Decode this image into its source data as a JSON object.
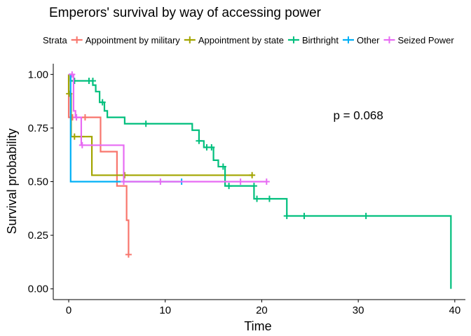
{
  "chart_data": {
    "type": "line",
    "title": "Emperors' survival by way of accessing power",
    "xlabel": "Time",
    "ylabel": "Survival probability",
    "xlim": [
      -1.6,
      41.1
    ],
    "ylim": [
      -0.05,
      1.05
    ],
    "x_ticks": [
      0,
      10,
      20,
      30,
      40
    ],
    "y_ticks": [
      0,
      0.25,
      0.5,
      0.75,
      1.0
    ],
    "x_tick_labels": [
      "0",
      "10",
      "20",
      "30",
      "40"
    ],
    "y_tick_labels": [
      "0.00",
      "0.25",
      "0.50",
      "0.75",
      "1.00"
    ],
    "legend_title": "Strata",
    "legend_position": "top",
    "grid": false,
    "annotation": {
      "text": "p = 0.068",
      "x": 30,
      "y": 0.79
    },
    "series": [
      {
        "name": "Appointment by military",
        "color": "#F8766D",
        "steps": [
          [
            0,
            1.0
          ],
          [
            0,
            0.8
          ],
          [
            3.3,
            0.8
          ],
          [
            3.3,
            0.64
          ],
          [
            5.0,
            0.48
          ],
          [
            6.0,
            0.32
          ],
          [
            6.2,
            0.16
          ]
        ],
        "end_x": 6.2,
        "censored": [
          [
            0.4,
            0.8
          ],
          [
            0.8,
            0.8
          ],
          [
            1.7,
            0.8
          ],
          [
            6.2,
            0.16
          ]
        ]
      },
      {
        "name": "Appointment by state",
        "color": "#A3A500",
        "steps": [
          [
            0,
            1.0
          ],
          [
            0,
            0.91
          ],
          [
            0.25,
            0.91
          ],
          [
            0.25,
            0.71
          ],
          [
            2.4,
            0.71
          ],
          [
            2.4,
            0.53
          ]
        ],
        "end_x": 19.0,
        "censored": [
          [
            0.05,
            0.91
          ],
          [
            0.6,
            0.71
          ],
          [
            1.3,
            0.71
          ],
          [
            5.8,
            0.53
          ],
          [
            19.0,
            0.53
          ]
        ]
      },
      {
        "name": "Birthright",
        "color": "#00BF7D",
        "steps": [
          [
            0,
            1.0
          ],
          [
            0.2,
            0.97
          ],
          [
            2.5,
            0.97
          ],
          [
            2.5,
            0.95
          ],
          [
            2.8,
            0.95
          ],
          [
            2.8,
            0.92
          ],
          [
            3.2,
            0.92
          ],
          [
            3.2,
            0.87
          ],
          [
            3.7,
            0.87
          ],
          [
            3.7,
            0.83
          ],
          [
            4.0,
            0.83
          ],
          [
            4.0,
            0.8
          ],
          [
            5.8,
            0.8
          ],
          [
            5.8,
            0.77
          ],
          [
            12.8,
            0.77
          ],
          [
            12.8,
            0.74
          ],
          [
            13.5,
            0.74
          ],
          [
            13.5,
            0.69
          ],
          [
            14.0,
            0.69
          ],
          [
            14.0,
            0.66
          ],
          [
            15.0,
            0.66
          ],
          [
            15.0,
            0.6
          ],
          [
            15.5,
            0.6
          ],
          [
            15.5,
            0.57
          ],
          [
            16.2,
            0.57
          ],
          [
            16.2,
            0.48
          ],
          [
            19.2,
            0.48
          ],
          [
            19.2,
            0.42
          ],
          [
            22.6,
            0.42
          ],
          [
            22.6,
            0.34
          ],
          [
            39.6,
            0.34
          ],
          [
            39.6,
            0.0
          ]
        ],
        "end_x": 39.6,
        "censored": [
          [
            0.6,
            0.97
          ],
          [
            2.1,
            0.97
          ],
          [
            2.5,
            0.97
          ],
          [
            3.5,
            0.87
          ],
          [
            8.0,
            0.77
          ],
          [
            13.5,
            0.69
          ],
          [
            14.3,
            0.66
          ],
          [
            14.8,
            0.66
          ],
          [
            16.0,
            0.57
          ],
          [
            16.6,
            0.48
          ],
          [
            19.2,
            0.48
          ],
          [
            19.5,
            0.42
          ],
          [
            20.8,
            0.42
          ],
          [
            22.6,
            0.34
          ],
          [
            24.4,
            0.34
          ],
          [
            30.8,
            0.34
          ]
        ]
      },
      {
        "name": "Other",
        "color": "#00B0F6",
        "steps": [
          [
            0,
            1.0
          ],
          [
            0.2,
            1.0
          ],
          [
            0.2,
            0.5
          ]
        ],
        "end_x": 11.7,
        "censored": [
          [
            11.7,
            0.5
          ]
        ]
      },
      {
        "name": "Seized Power",
        "color": "#E76BF3",
        "steps": [
          [
            0,
            1.0
          ],
          [
            0.5,
            1.0
          ],
          [
            0.5,
            0.83
          ],
          [
            0.7,
            0.83
          ],
          [
            0.7,
            0.8
          ],
          [
            1.3,
            0.8
          ],
          [
            1.3,
            0.67
          ],
          [
            5.7,
            0.67
          ],
          [
            5.7,
            0.5
          ]
        ],
        "end_x": 20.5,
        "censored": [
          [
            0.35,
            1.0
          ],
          [
            0.8,
            0.8
          ],
          [
            1.4,
            0.67
          ],
          [
            5.7,
            0.5
          ],
          [
            9.5,
            0.5
          ],
          [
            17.8,
            0.5
          ],
          [
            20.5,
            0.5
          ]
        ]
      }
    ]
  }
}
